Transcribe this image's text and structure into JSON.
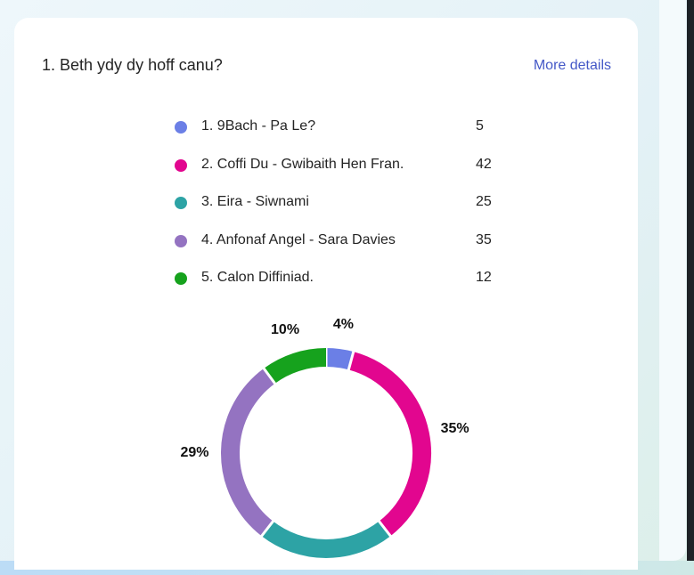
{
  "question": {
    "title": "1. Beth ydy dy hoff canu?",
    "more_details_label": "More details"
  },
  "chart_data": {
    "type": "pie",
    "donut": true,
    "categories": [
      "1. 9Bach - Pa Le?",
      "2. Coffi Du - Gwibaith Hen Fran.",
      "3. Eira - Siwnami",
      "4. Anfonaf Angel - Sara Davies",
      " 5. Calon Diffiniad."
    ],
    "values": [
      5,
      42,
      25,
      35,
      12
    ],
    "colors": [
      "#6b7fe6",
      "#e2068f",
      "#2da3a5",
      "#9473c1",
      "#16a21d"
    ],
    "percent_labels": [
      "4%",
      "35%",
      "",
      "29%",
      "10%"
    ],
    "legend_position": "top"
  }
}
